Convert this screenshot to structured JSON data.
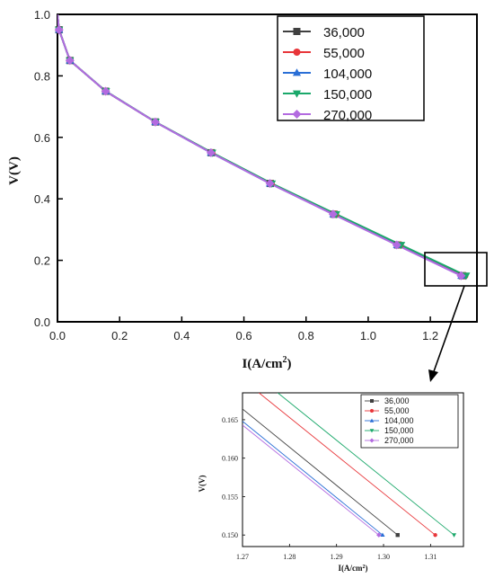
{
  "chart_data": [
    {
      "type": "line",
      "title": "",
      "xlabel": "I(A/cm",
      "xlabel_sup": "2",
      "xlabel_close": ")",
      "ylabel": "V(V)",
      "xlim": [
        0.0,
        1.35
      ],
      "ylim": [
        0.0,
        1.0
      ],
      "xticks": [
        0.0,
        0.2,
        0.4,
        0.6,
        0.8,
        1.0,
        1.2
      ],
      "xtick_labels": [
        "0.0",
        "0.2",
        "0.4",
        "0.6",
        "0.8",
        "1.0",
        "1.2"
      ],
      "yticks": [
        0.0,
        0.2,
        0.4,
        0.6,
        0.8,
        1.0
      ],
      "ytick_labels": [
        "0.0",
        "0.2",
        "0.4",
        "0.6",
        "0.8",
        "1.0"
      ],
      "grid": false,
      "legend_position": "top-right",
      "series": [
        {
          "name": "36,000",
          "color": "#404040",
          "marker": "square",
          "points": [
            [
              0.0,
              1.0
            ],
            [
              0.005,
              0.95
            ],
            [
              0.04,
              0.85
            ],
            [
              0.155,
              0.75
            ],
            [
              0.315,
              0.65
            ],
            [
              0.495,
              0.55
            ],
            [
              0.685,
              0.45
            ],
            [
              0.89,
              0.35
            ],
            [
              1.095,
              0.25
            ],
            [
              1.303,
              0.15
            ]
          ]
        },
        {
          "name": "55,000",
          "color": "#e8363a",
          "marker": "circle",
          "points": [
            [
              0.0,
              1.0
            ],
            [
              0.005,
              0.95
            ],
            [
              0.04,
              0.85
            ],
            [
              0.155,
              0.75
            ],
            [
              0.315,
              0.65
            ],
            [
              0.497,
              0.55
            ],
            [
              0.688,
              0.45
            ],
            [
              0.895,
              0.35
            ],
            [
              1.103,
              0.25
            ],
            [
              1.311,
              0.15
            ]
          ]
        },
        {
          "name": "104,000",
          "color": "#2a6fd6",
          "marker": "triangle-up",
          "points": [
            [
              0.0,
              1.0
            ],
            [
              0.005,
              0.95
            ],
            [
              0.04,
              0.85
            ],
            [
              0.155,
              0.75
            ],
            [
              0.315,
              0.65
            ],
            [
              0.494,
              0.55
            ],
            [
              0.684,
              0.45
            ],
            [
              0.888,
              0.35
            ],
            [
              1.093,
              0.25
            ],
            [
              1.3,
              0.15
            ]
          ]
        },
        {
          "name": "150,000",
          "color": "#1aa86a",
          "marker": "triangle-down",
          "points": [
            [
              0.0,
              1.0
            ],
            [
              0.005,
              0.95
            ],
            [
              0.04,
              0.85
            ],
            [
              0.156,
              0.75
            ],
            [
              0.316,
              0.65
            ],
            [
              0.498,
              0.55
            ],
            [
              0.69,
              0.45
            ],
            [
              0.897,
              0.35
            ],
            [
              1.106,
              0.25
            ],
            [
              1.315,
              0.15
            ]
          ]
        },
        {
          "name": "270,000",
          "color": "#b36be0",
          "marker": "diamond",
          "points": [
            [
              0.0,
              1.0
            ],
            [
              0.005,
              0.95
            ],
            [
              0.04,
              0.85
            ],
            [
              0.155,
              0.75
            ],
            [
              0.315,
              0.65
            ],
            [
              0.494,
              0.55
            ],
            [
              0.684,
              0.45
            ],
            [
              0.887,
              0.35
            ],
            [
              1.092,
              0.25
            ],
            [
              1.299,
              0.15
            ]
          ]
        }
      ]
    },
    {
      "type": "line",
      "title": "",
      "xlabel": "I(A/cm",
      "xlabel_sup": "2",
      "xlabel_close": ")",
      "ylabel": "V(V)",
      "xlim": [
        1.27,
        1.317
      ],
      "ylim": [
        0.1485,
        0.1685
      ],
      "xticks": [
        1.27,
        1.28,
        1.29,
        1.3,
        1.31
      ],
      "xtick_labels": [
        "1.27",
        "1.28",
        "1.29",
        "1.30",
        "1.31"
      ],
      "yticks": [
        0.15,
        0.155,
        0.16,
        0.165
      ],
      "ytick_labels": [
        "0.150",
        "0.155",
        "0.160",
        "0.165"
      ],
      "grid": false,
      "legend_position": "top-right",
      "series": [
        {
          "name": "36,000",
          "color": "#404040",
          "marker": "square",
          "points": [
            [
              1.27,
              0.1664
            ],
            [
              1.303,
              0.15
            ]
          ]
        },
        {
          "name": "55,000",
          "color": "#e8363a",
          "marker": "circle",
          "points": [
            [
              1.2735,
              0.1685
            ],
            [
              1.311,
              0.15
            ]
          ]
        },
        {
          "name": "104,000",
          "color": "#2a6fd6",
          "marker": "triangle-up",
          "points": [
            [
              1.27,
              0.1648
            ],
            [
              1.2998,
              0.15
            ]
          ]
        },
        {
          "name": "150,000",
          "color": "#1aa86a",
          "marker": "triangle-down",
          "points": [
            [
              1.2775,
              0.1685
            ],
            [
              1.315,
              0.15
            ]
          ]
        },
        {
          "name": "270,000",
          "color": "#b36be0",
          "marker": "diamond",
          "points": [
            [
              1.27,
              0.1643
            ],
            [
              1.299,
              0.15
            ]
          ]
        }
      ]
    }
  ]
}
